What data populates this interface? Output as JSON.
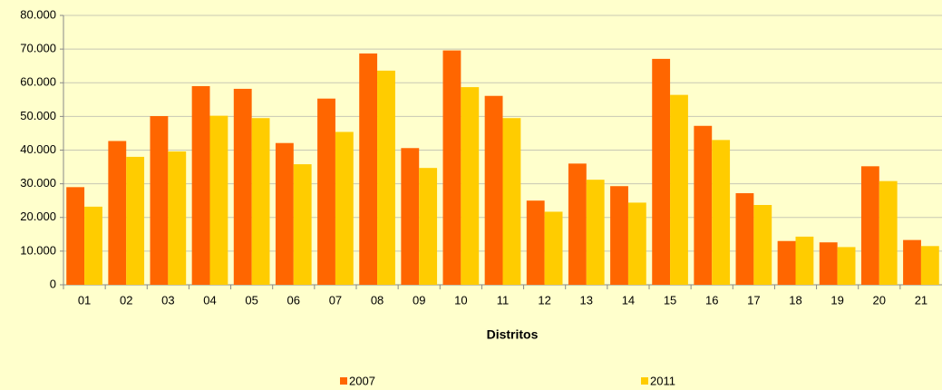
{
  "chart_data": {
    "type": "bar",
    "x_label": "Distritos",
    "categories": [
      "01",
      "02",
      "03",
      "04",
      "05",
      "06",
      "07",
      "08",
      "09",
      "10",
      "11",
      "12",
      "13",
      "14",
      "15",
      "16",
      "17",
      "18",
      "19",
      "20",
      "21"
    ],
    "series": [
      {
        "name": "2007",
        "color": "#ff6600",
        "values": [
          29000,
          42700,
          50100,
          59000,
          58200,
          42100,
          55300,
          68700,
          40600,
          69600,
          56100,
          25000,
          36000,
          29300,
          67100,
          47200,
          27200,
          13000,
          12600,
          35200,
          13300
        ]
      },
      {
        "name": "2011",
        "color": "#ffcc00",
        "values": [
          23200,
          38000,
          39600,
          50200,
          49500,
          35800,
          45400,
          63600,
          34700,
          58700,
          49500,
          21700,
          31200,
          24400,
          56400,
          43000,
          23700,
          14300,
          11200,
          30800,
          11500
        ]
      }
    ],
    "ylim": [
      0,
      80000
    ],
    "yticks": [
      0,
      {
        "value": 10000,
        "label": "10.000"
      },
      {
        "value": 20000,
        "label": "20.000"
      },
      {
        "value": 30000,
        "label": "30.000"
      },
      {
        "value": 40000,
        "label": "40.000"
      },
      {
        "value": 50000,
        "label": "50.000"
      },
      {
        "value": 60000,
        "label": "60.000"
      },
      {
        "value": 70000,
        "label": "70.000"
      },
      {
        "value": 80000,
        "label": "80.000"
      }
    ],
    "grid": true,
    "legend": "bottom"
  }
}
